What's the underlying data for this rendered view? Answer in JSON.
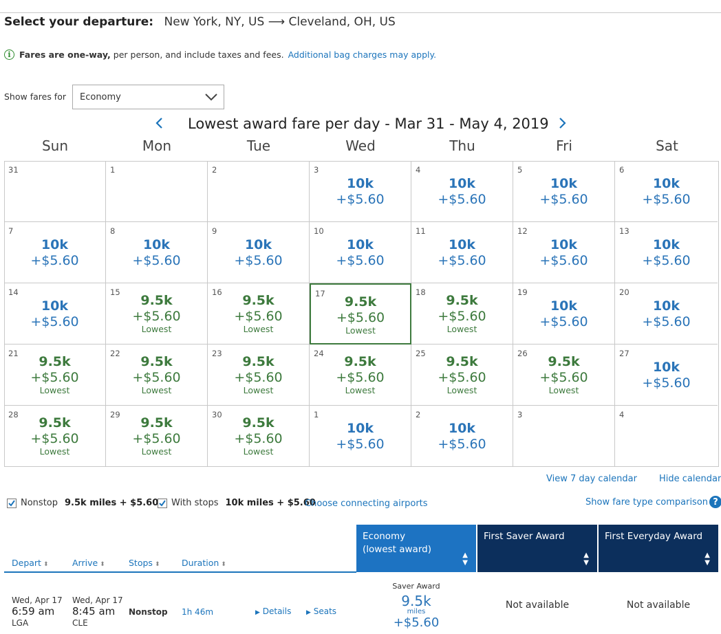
{
  "header": {
    "label": "Select your departure:",
    "route": "New York, NY, US ⟶ Cleveland, OH, US"
  },
  "info": {
    "bold": "Fares are one-way,",
    "text": " per person, and include taxes and fees.",
    "link": "Additional bag charges may apply."
  },
  "fare_selector": {
    "label": "Show fares for",
    "value": "Economy"
  },
  "calendar": {
    "title": "Lowest award fare per day - Mar 31 - May 4, 2019",
    "days": [
      "Sun",
      "Mon",
      "Tue",
      "Wed",
      "Thu",
      "Fri",
      "Sat"
    ],
    "weeks": [
      [
        {
          "day": "31",
          "miles": "",
          "tax": "",
          "lowest": ""
        },
        {
          "day": "1",
          "miles": "",
          "tax": "",
          "lowest": ""
        },
        {
          "day": "2",
          "miles": "",
          "tax": "",
          "lowest": ""
        },
        {
          "day": "3",
          "miles": "10k",
          "tax": "+$5.60",
          "lowest": ""
        },
        {
          "day": "4",
          "miles": "10k",
          "tax": "+$5.60",
          "lowest": ""
        },
        {
          "day": "5",
          "miles": "10k",
          "tax": "+$5.60",
          "lowest": ""
        },
        {
          "day": "6",
          "miles": "10k",
          "tax": "+$5.60",
          "lowest": ""
        }
      ],
      [
        {
          "day": "7",
          "miles": "10k",
          "tax": "+$5.60",
          "lowest": ""
        },
        {
          "day": "8",
          "miles": "10k",
          "tax": "+$5.60",
          "lowest": ""
        },
        {
          "day": "9",
          "miles": "10k",
          "tax": "+$5.60",
          "lowest": ""
        },
        {
          "day": "10",
          "miles": "10k",
          "tax": "+$5.60",
          "lowest": ""
        },
        {
          "day": "11",
          "miles": "10k",
          "tax": "+$5.60",
          "lowest": ""
        },
        {
          "day": "12",
          "miles": "10k",
          "tax": "+$5.60",
          "lowest": ""
        },
        {
          "day": "13",
          "miles": "10k",
          "tax": "+$5.60",
          "lowest": ""
        }
      ],
      [
        {
          "day": "14",
          "miles": "10k",
          "tax": "+$5.60",
          "lowest": ""
        },
        {
          "day": "15",
          "miles": "9.5k",
          "tax": "+$5.60",
          "lowest": "Lowest"
        },
        {
          "day": "16",
          "miles": "9.5k",
          "tax": "+$5.60",
          "lowest": "Lowest"
        },
        {
          "day": "17",
          "miles": "9.5k",
          "tax": "+$5.60",
          "lowest": "Lowest",
          "selected": true
        },
        {
          "day": "18",
          "miles": "9.5k",
          "tax": "+$5.60",
          "lowest": "Lowest"
        },
        {
          "day": "19",
          "miles": "10k",
          "tax": "+$5.60",
          "lowest": ""
        },
        {
          "day": "20",
          "miles": "10k",
          "tax": "+$5.60",
          "lowest": ""
        }
      ],
      [
        {
          "day": "21",
          "miles": "9.5k",
          "tax": "+$5.60",
          "lowest": "Lowest"
        },
        {
          "day": "22",
          "miles": "9.5k",
          "tax": "+$5.60",
          "lowest": "Lowest"
        },
        {
          "day": "23",
          "miles": "9.5k",
          "tax": "+$5.60",
          "lowest": "Lowest"
        },
        {
          "day": "24",
          "miles": "9.5k",
          "tax": "+$5.60",
          "lowest": "Lowest"
        },
        {
          "day": "25",
          "miles": "9.5k",
          "tax": "+$5.60",
          "lowest": "Lowest"
        },
        {
          "day": "26",
          "miles": "9.5k",
          "tax": "+$5.60",
          "lowest": "Lowest"
        },
        {
          "day": "27",
          "miles": "10k",
          "tax": "+$5.60",
          "lowest": ""
        }
      ],
      [
        {
          "day": "28",
          "miles": "9.5k",
          "tax": "+$5.60",
          "lowest": "Lowest"
        },
        {
          "day": "29",
          "miles": "9.5k",
          "tax": "+$5.60",
          "lowest": "Lowest"
        },
        {
          "day": "30",
          "miles": "9.5k",
          "tax": "+$5.60",
          "lowest": "Lowest"
        },
        {
          "day": "1",
          "miles": "10k",
          "tax": "+$5.60",
          "lowest": ""
        },
        {
          "day": "2",
          "miles": "10k",
          "tax": "+$5.60",
          "lowest": ""
        },
        {
          "day": "3",
          "miles": "",
          "tax": "",
          "lowest": ""
        },
        {
          "day": "4",
          "miles": "",
          "tax": "",
          "lowest": ""
        }
      ]
    ],
    "view7_link": "View 7 day calendar",
    "hide_link": "Hide calendar"
  },
  "filters": {
    "nonstop": {
      "label": "Nonstop",
      "value": "9.5k miles + $5.60",
      "checked": true
    },
    "with_stops": {
      "label": "With stops",
      "value": "10k miles + $5.60",
      "checked": true
    },
    "connecting_link": "Choose connecting airports",
    "fare_type_link": "Show fare type comparison"
  },
  "results_table": {
    "columns": [
      "Depart",
      "Arrive",
      "Stops",
      "Duration"
    ],
    "cabins": [
      {
        "line1": "Economy",
        "line2": "(lowest award)",
        "color": "#1d73c2"
      },
      {
        "line1": "First Saver Award",
        "line2": "",
        "color": "#0c2f5c"
      },
      {
        "line1": "First Everyday Award",
        "line2": "",
        "color": "#0c2f5c"
      }
    ],
    "rows": [
      {
        "depart_date": "Wed, Apr 17",
        "depart_time": "6:59 am",
        "depart_airport": "LGA",
        "arrive_date": "Wed, Apr 17",
        "arrive_time": "8:45 am",
        "arrive_airport": "CLE",
        "stops": "Nonstop",
        "duration": "1h 46m",
        "details_link": "Details",
        "seats_link": "Seats",
        "economy_label": "Saver Award",
        "economy_miles": "9.5k",
        "economy_unit": "miles",
        "economy_tax": "+$5.60",
        "first_saver": "Not available",
        "first_everyday": "Not available"
      }
    ]
  },
  "colors": {
    "accent_blue": "#1b74bb",
    "fare_blue": "#2a74b8",
    "lowest_green": "#3d7a3d",
    "dark_navy": "#0c2f5c"
  }
}
